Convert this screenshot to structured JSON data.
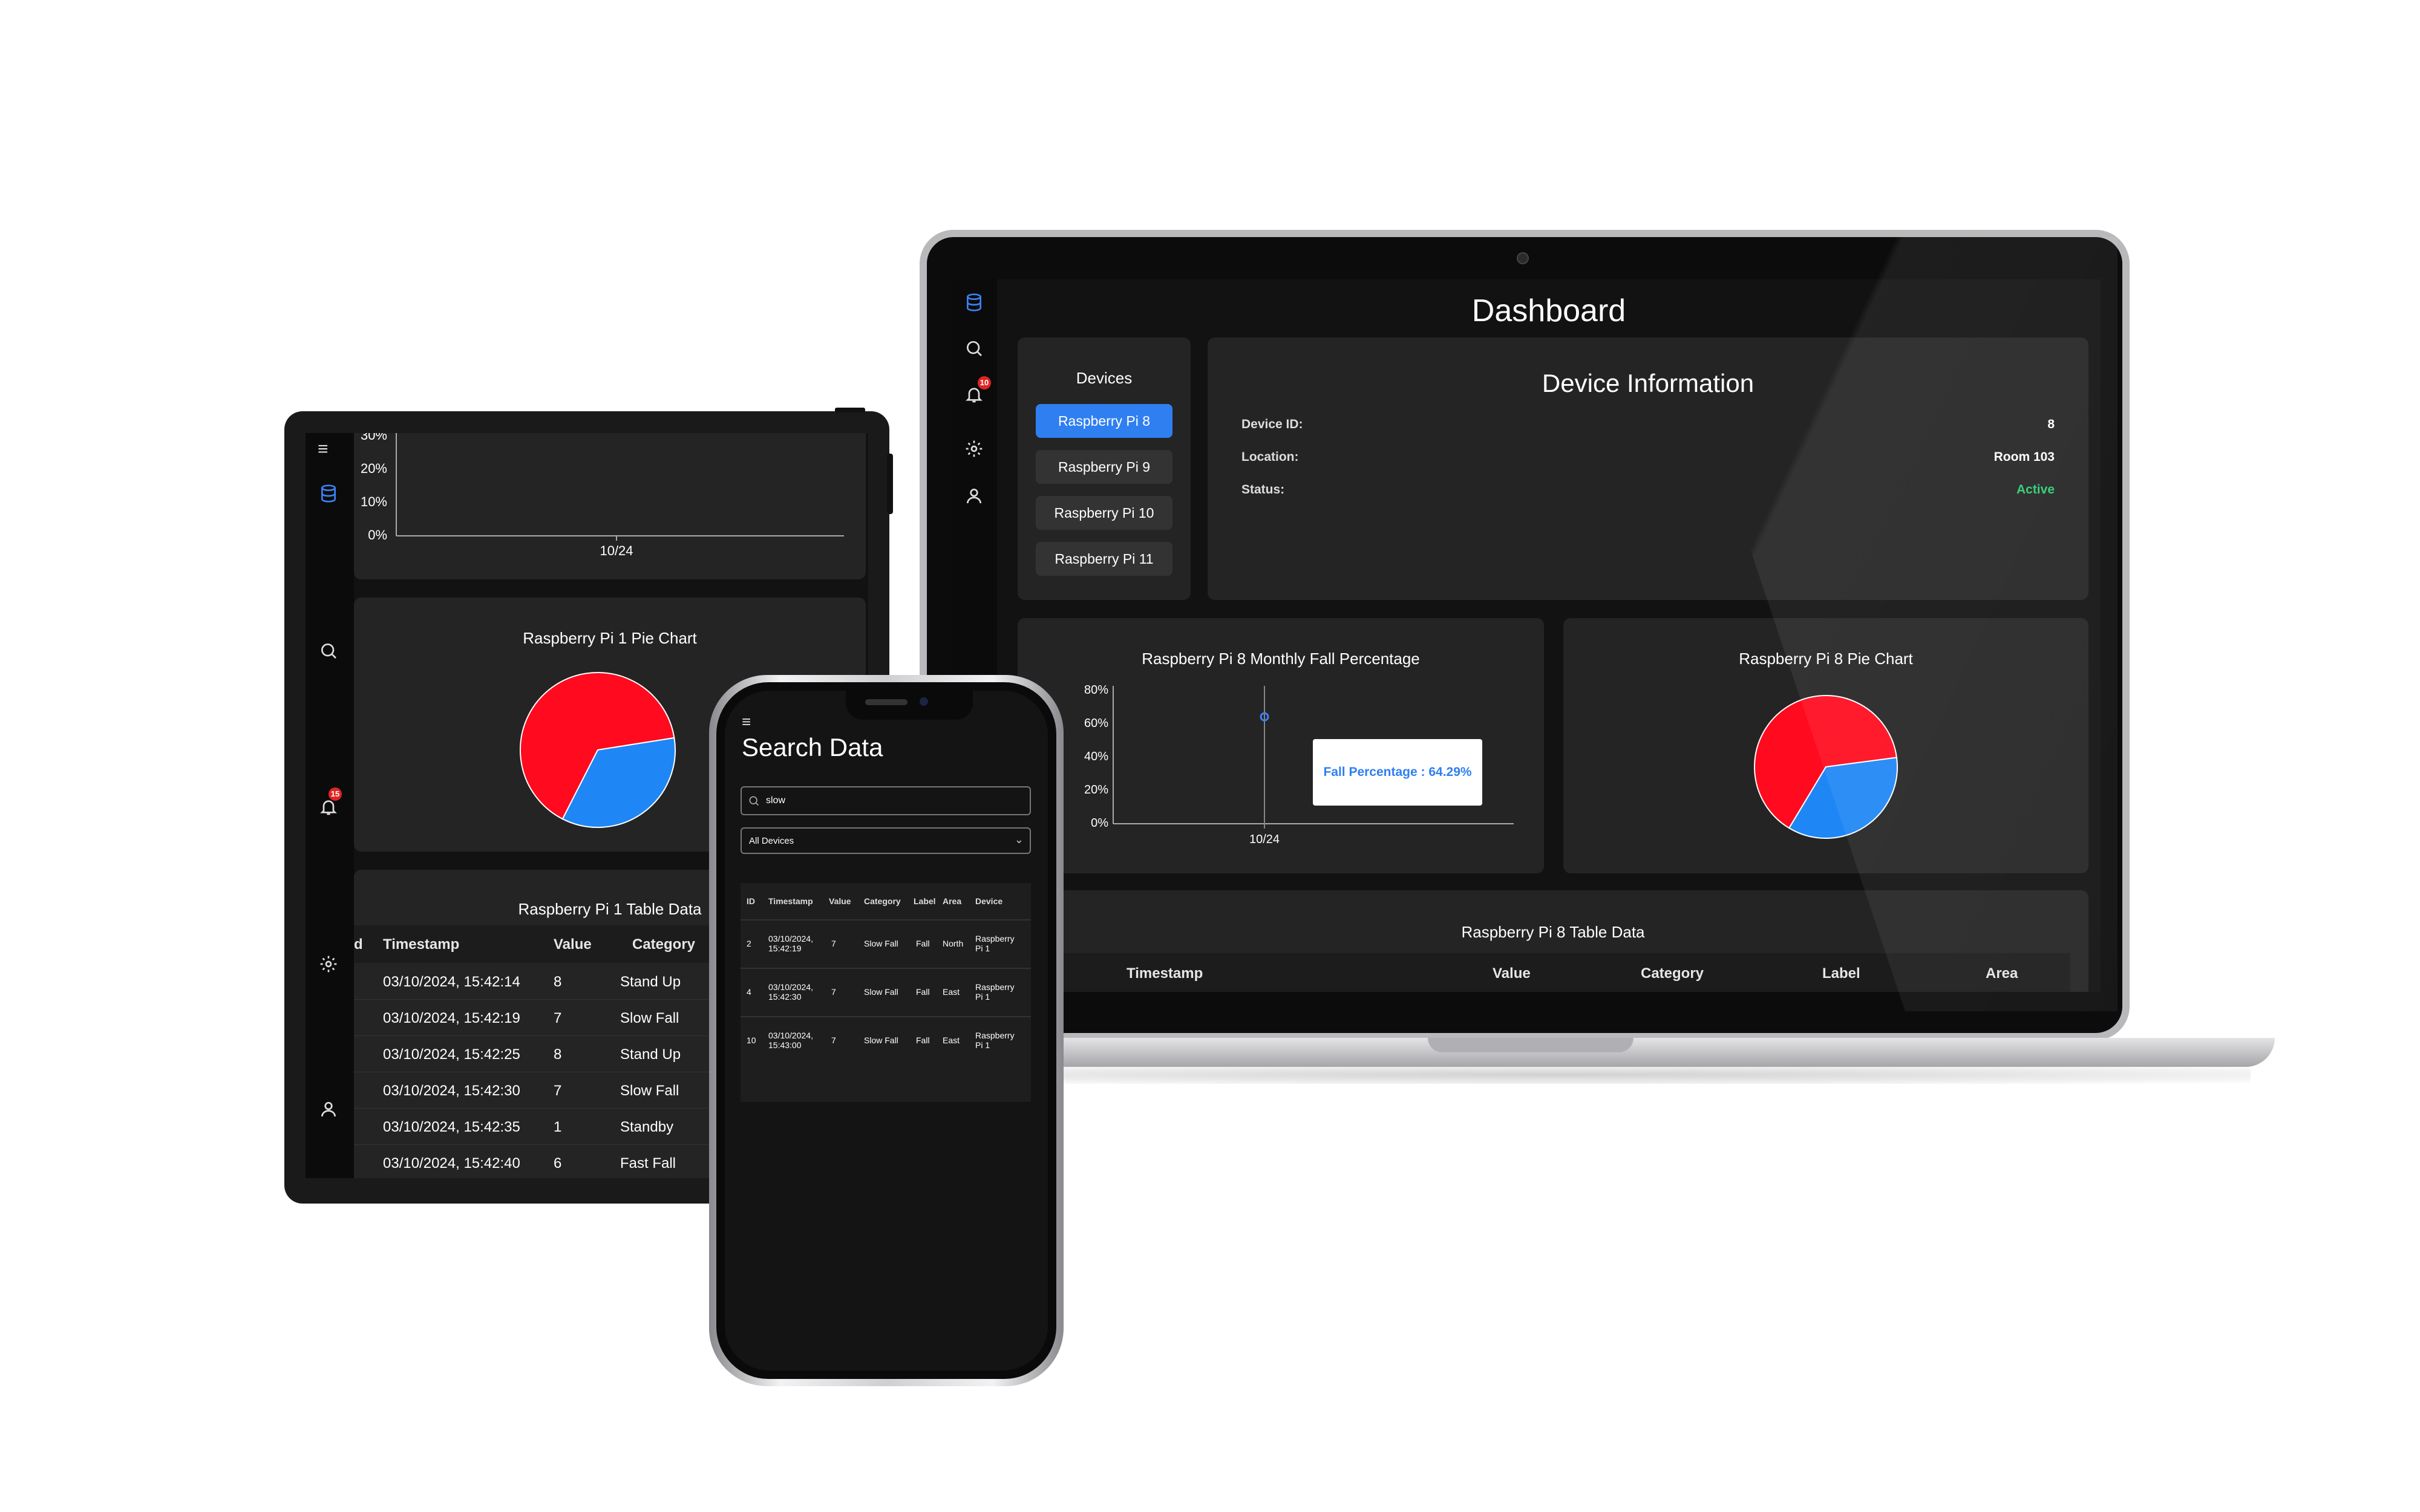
{
  "laptop": {
    "sidebar": {
      "notification_count": "10"
    },
    "title": "Dashboard",
    "devices": {
      "title": "Devices",
      "items": [
        "Raspberry Pi 8",
        "Raspberry Pi 9",
        "Raspberry Pi 10",
        "Raspberry Pi 11"
      ],
      "active_index": 0
    },
    "device_info": {
      "title": "Device Information",
      "rows": [
        {
          "key": "Device ID:",
          "value": "8"
        },
        {
          "key": "Location:",
          "value": "Room 103"
        },
        {
          "key": "Status:",
          "value": "Active"
        }
      ],
      "status_color": "#2ecc71"
    },
    "line_chart": {
      "title": "Raspberry Pi 8 Monthly Fall Percentage",
      "y_ticks": [
        "80%",
        "60%",
        "40%",
        "20%",
        "0%"
      ],
      "x_tick": "10/24",
      "tooltip": "Fall Percentage : 64.29%"
    },
    "pie_chart": {
      "title": "Raspberry Pi 8 Pie Chart"
    },
    "table": {
      "title": "Raspberry Pi 8 Table Data",
      "headers": [
        "Timestamp",
        "Value",
        "Category",
        "Label",
        "Area"
      ]
    }
  },
  "tablet": {
    "sidebar": {
      "notification_count": "15"
    },
    "line_chart": {
      "y_ticks": [
        "30%",
        "20%",
        "10%",
        "0%"
      ],
      "x_tick": "10/24"
    },
    "pie_chart": {
      "title": "Raspberry Pi 1 Pie Chart"
    },
    "table": {
      "title": "Raspberry Pi 1 Table Data",
      "headers": [
        "d",
        "Timestamp",
        "Value",
        "Category"
      ],
      "rows": [
        {
          "timestamp": "03/10/2024, 15:42:14",
          "value": "8",
          "category": "Stand Up"
        },
        {
          "timestamp": "03/10/2024, 15:42:19",
          "value": "7",
          "category": "Slow Fall"
        },
        {
          "timestamp": "03/10/2024, 15:42:25",
          "value": "8",
          "category": "Stand Up"
        },
        {
          "timestamp": "03/10/2024, 15:42:30",
          "value": "7",
          "category": "Slow Fall"
        },
        {
          "timestamp": "03/10/2024, 15:42:35",
          "value": "1",
          "category": "Standby"
        },
        {
          "timestamp": "03/10/2024, 15:42:40",
          "value": "6",
          "category": "Fast Fall"
        }
      ]
    }
  },
  "phone": {
    "menu_icon": "≡",
    "title": "Search Data",
    "search_value": "slow",
    "device_filter": "All Devices",
    "table": {
      "headers": [
        "ID",
        "Timestamp",
        "Value",
        "Category",
        "Label",
        "Area",
        "Device"
      ],
      "rows": [
        {
          "id": "2",
          "timestamp": "03/10/2024,\n15:42:19",
          "value": "7",
          "category": "Slow Fall",
          "label": "Fall",
          "area": "North",
          "device": "Raspberry\nPi 1"
        },
        {
          "id": "4",
          "timestamp": "03/10/2024,\n15:42:30",
          "value": "7",
          "category": "Slow Fall",
          "label": "Fall",
          "area": "East",
          "device": "Raspberry\nPi 1"
        },
        {
          "id": "10",
          "timestamp": "03/10/2024,\n15:43:00",
          "value": "7",
          "category": "Slow Fall",
          "label": "Fall",
          "area": "East",
          "device": "Raspberry\nPi 1"
        }
      ]
    }
  },
  "pie_colors": {
    "primary": "#ff0a1e",
    "secondary": "#1f86f5"
  },
  "chart_data": [
    {
      "type": "pie",
      "title": "Raspberry Pi 8 Pie Chart",
      "values": [
        64.29,
        35.71
      ],
      "colors": [
        "#ff0a1e",
        "#1f86f5"
      ]
    },
    {
      "type": "line",
      "title": "Raspberry Pi 8 Monthly Fall Percentage",
      "x": [
        "10/24"
      ],
      "y": [
        64.29
      ],
      "ylim": [
        0,
        80
      ]
    },
    {
      "type": "pie",
      "title": "Raspberry Pi 1 Pie Chart",
      "values": [
        65,
        35
      ],
      "colors": [
        "#ff0a1e",
        "#1f86f5"
      ]
    }
  ]
}
